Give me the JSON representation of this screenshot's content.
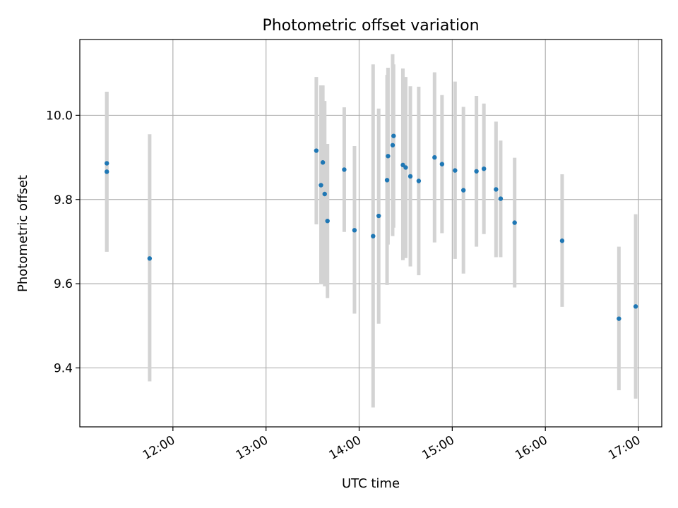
{
  "chart_data": {
    "type": "scatter",
    "title": "Photometric offset variation",
    "xlabel": "UTC time",
    "ylabel": "Photometric offset",
    "x_unit": "UTC hours",
    "xlim": [
      11.0,
      17.25
    ],
    "ylim": [
      9.26,
      10.18
    ],
    "grid": true,
    "x_ticks": [
      {
        "value": 12,
        "label": "12:00"
      },
      {
        "value": 13,
        "label": "13:00"
      },
      {
        "value": 14,
        "label": "14:00"
      },
      {
        "value": 15,
        "label": "15:00"
      },
      {
        "value": 16,
        "label": "16:00"
      },
      {
        "value": 17,
        "label": "17:00"
      }
    ],
    "y_ticks": [
      {
        "value": 9.4,
        "label": "9.4"
      },
      {
        "value": 9.6,
        "label": "9.6"
      },
      {
        "value": 9.8,
        "label": "9.8"
      },
      {
        "value": 10.0,
        "label": "10.0"
      }
    ],
    "colors": {
      "point": "#1f77b4",
      "errorbar": "#d3d3d3",
      "grid": "#b0b0b0"
    },
    "points": [
      {
        "x": 11.29,
        "y": 9.886,
        "ylow": 9.676,
        "yhigh": 10.056
      },
      {
        "x": 11.29,
        "y": 9.866,
        "ylow": 9.676,
        "yhigh": 10.056
      },
      {
        "x": 11.75,
        "y": 9.66,
        "ylow": 9.368,
        "yhigh": 9.955
      },
      {
        "x": 13.54,
        "y": 9.916,
        "ylow": 9.741,
        "yhigh": 10.091
      },
      {
        "x": 13.59,
        "y": 9.834,
        "ylow": 9.599,
        "yhigh": 10.071
      },
      {
        "x": 13.61,
        "y": 9.888,
        "ylow": 9.599,
        "yhigh": 10.071
      },
      {
        "x": 13.63,
        "y": 9.813,
        "ylow": 9.594,
        "yhigh": 10.034
      },
      {
        "x": 13.66,
        "y": 9.749,
        "ylow": 9.566,
        "yhigh": 9.932
      },
      {
        "x": 13.84,
        "y": 9.871,
        "ylow": 9.723,
        "yhigh": 10.019
      },
      {
        "x": 13.95,
        "y": 9.727,
        "ylow": 9.529,
        "yhigh": 9.927
      },
      {
        "x": 14.15,
        "y": 9.713,
        "ylow": 9.306,
        "yhigh": 10.121
      },
      {
        "x": 14.21,
        "y": 9.761,
        "ylow": 9.505,
        "yhigh": 10.016
      },
      {
        "x": 14.3,
        "y": 9.846,
        "ylow": 9.597,
        "yhigh": 10.096
      },
      {
        "x": 14.31,
        "y": 9.903,
        "ylow": 9.693,
        "yhigh": 10.113
      },
      {
        "x": 14.36,
        "y": 9.929,
        "ylow": 9.713,
        "yhigh": 10.145
      },
      {
        "x": 14.37,
        "y": 9.951,
        "ylow": 9.733,
        "yhigh": 10.121
      },
      {
        "x": 14.47,
        "y": 9.882,
        "ylow": 9.656,
        "yhigh": 10.111
      },
      {
        "x": 14.5,
        "y": 9.876,
        "ylow": 9.661,
        "yhigh": 10.091
      },
      {
        "x": 14.55,
        "y": 9.855,
        "ylow": 9.641,
        "yhigh": 10.069
      },
      {
        "x": 14.64,
        "y": 9.844,
        "ylow": 9.62,
        "yhigh": 10.068
      },
      {
        "x": 14.81,
        "y": 9.9,
        "ylow": 9.698,
        "yhigh": 10.102
      },
      {
        "x": 14.89,
        "y": 9.884,
        "ylow": 9.72,
        "yhigh": 10.048
      },
      {
        "x": 15.03,
        "y": 9.869,
        "ylow": 9.659,
        "yhigh": 10.08
      },
      {
        "x": 15.12,
        "y": 9.822,
        "ylow": 9.624,
        "yhigh": 10.02
      },
      {
        "x": 15.26,
        "y": 9.867,
        "ylow": 9.688,
        "yhigh": 10.046
      },
      {
        "x": 15.34,
        "y": 9.873,
        "ylow": 9.718,
        "yhigh": 10.028
      },
      {
        "x": 15.47,
        "y": 9.824,
        "ylow": 9.663,
        "yhigh": 9.985
      },
      {
        "x": 15.52,
        "y": 9.802,
        "ylow": 9.663,
        "yhigh": 9.94
      },
      {
        "x": 15.67,
        "y": 9.745,
        "ylow": 9.591,
        "yhigh": 9.899
      },
      {
        "x": 16.18,
        "y": 9.702,
        "ylow": 9.545,
        "yhigh": 9.86
      },
      {
        "x": 16.79,
        "y": 9.517,
        "ylow": 9.347,
        "yhigh": 9.688
      },
      {
        "x": 16.97,
        "y": 9.546,
        "ylow": 9.327,
        "yhigh": 9.765
      }
    ]
  }
}
